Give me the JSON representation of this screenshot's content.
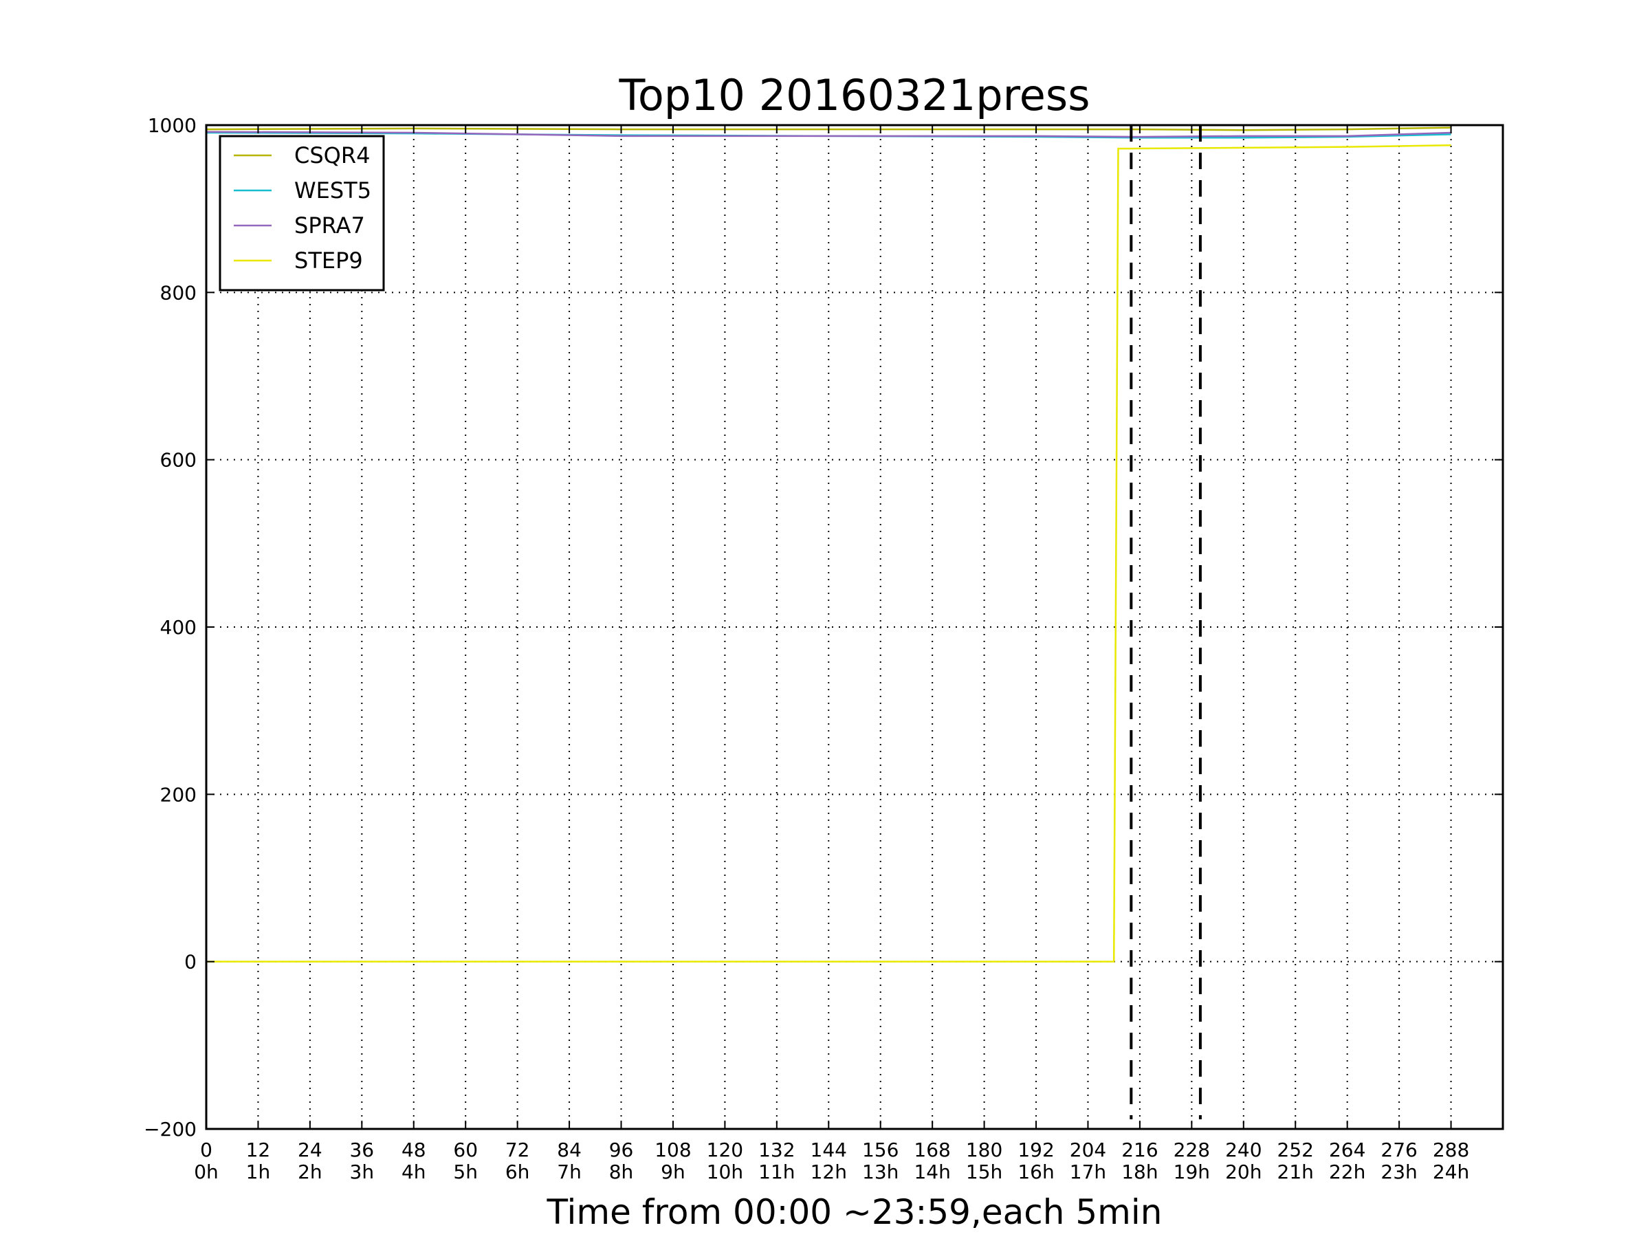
{
  "chart_data": {
    "type": "line",
    "title": "Top10 20160321press",
    "xlabel": "Time from 00:00 ~23:59,each 5min",
    "ylabel": "",
    "xlim": [
      0,
      300
    ],
    "ylim": [
      -200,
      1000
    ],
    "grid": true,
    "legend_position": "top-left",
    "x_ticks": [
      0,
      12,
      24,
      36,
      48,
      60,
      72,
      84,
      96,
      108,
      120,
      132,
      144,
      156,
      168,
      180,
      192,
      204,
      216,
      228,
      240,
      252,
      264,
      276,
      288
    ],
    "x_tick_labels": [
      "0\n0h",
      "12\n1h",
      "24\n2h",
      "36\n3h",
      "48\n4h",
      "60\n5h",
      "72\n6h",
      "84\n7h",
      "96\n8h",
      "108\n9h",
      "120\n10h",
      "132\n11h",
      "144\n12h",
      "156\n13h",
      "168\n14h",
      "180\n15h",
      "192\n16h",
      "204\n17h",
      "216\n18h",
      "228\n19h",
      "240\n20h",
      "252\n21h",
      "264\n22h",
      "276\n23h",
      "288\n24h"
    ],
    "y_ticks": [
      -200,
      0,
      200,
      400,
      600,
      800,
      1000
    ],
    "y_tick_labels": [
      "−200",
      "0",
      "200",
      "400",
      "600",
      "800",
      "1000"
    ],
    "vlines": [
      {
        "x": 214,
        "style": "dashed",
        "color": "#000000"
      },
      {
        "x": 230,
        "style": "dashed",
        "color": "#000000"
      }
    ],
    "series": [
      {
        "name": "CSQR4",
        "color": "#b5b500",
        "x": [
          0,
          48,
          96,
          144,
          192,
          216,
          240,
          264,
          288
        ],
        "y": [
          995,
          996,
          995,
          995,
          995,
          995,
          994,
          995,
          997
        ]
      },
      {
        "name": "WEST5",
        "color": "#17becf",
        "x": [
          0,
          48,
          96,
          144,
          192,
          216,
          240,
          264,
          288
        ],
        "y": [
          991,
          990,
          988,
          987,
          986,
          985,
          985,
          986,
          989
        ]
      },
      {
        "name": "SPRA7",
        "color": "#9467bd",
        "x": [
          0,
          48,
          96,
          144,
          192,
          216,
          240,
          264,
          288
        ],
        "y": [
          992,
          991,
          987,
          987,
          987,
          986,
          987,
          987,
          991
        ]
      },
      {
        "name": "STEP9",
        "color": "#e8e800",
        "x": [
          0,
          100,
          200,
          210,
          211,
          214,
          240,
          264,
          288
        ],
        "y": [
          0,
          0,
          0,
          0,
          972,
          972,
          973,
          974,
          976
        ]
      }
    ]
  }
}
